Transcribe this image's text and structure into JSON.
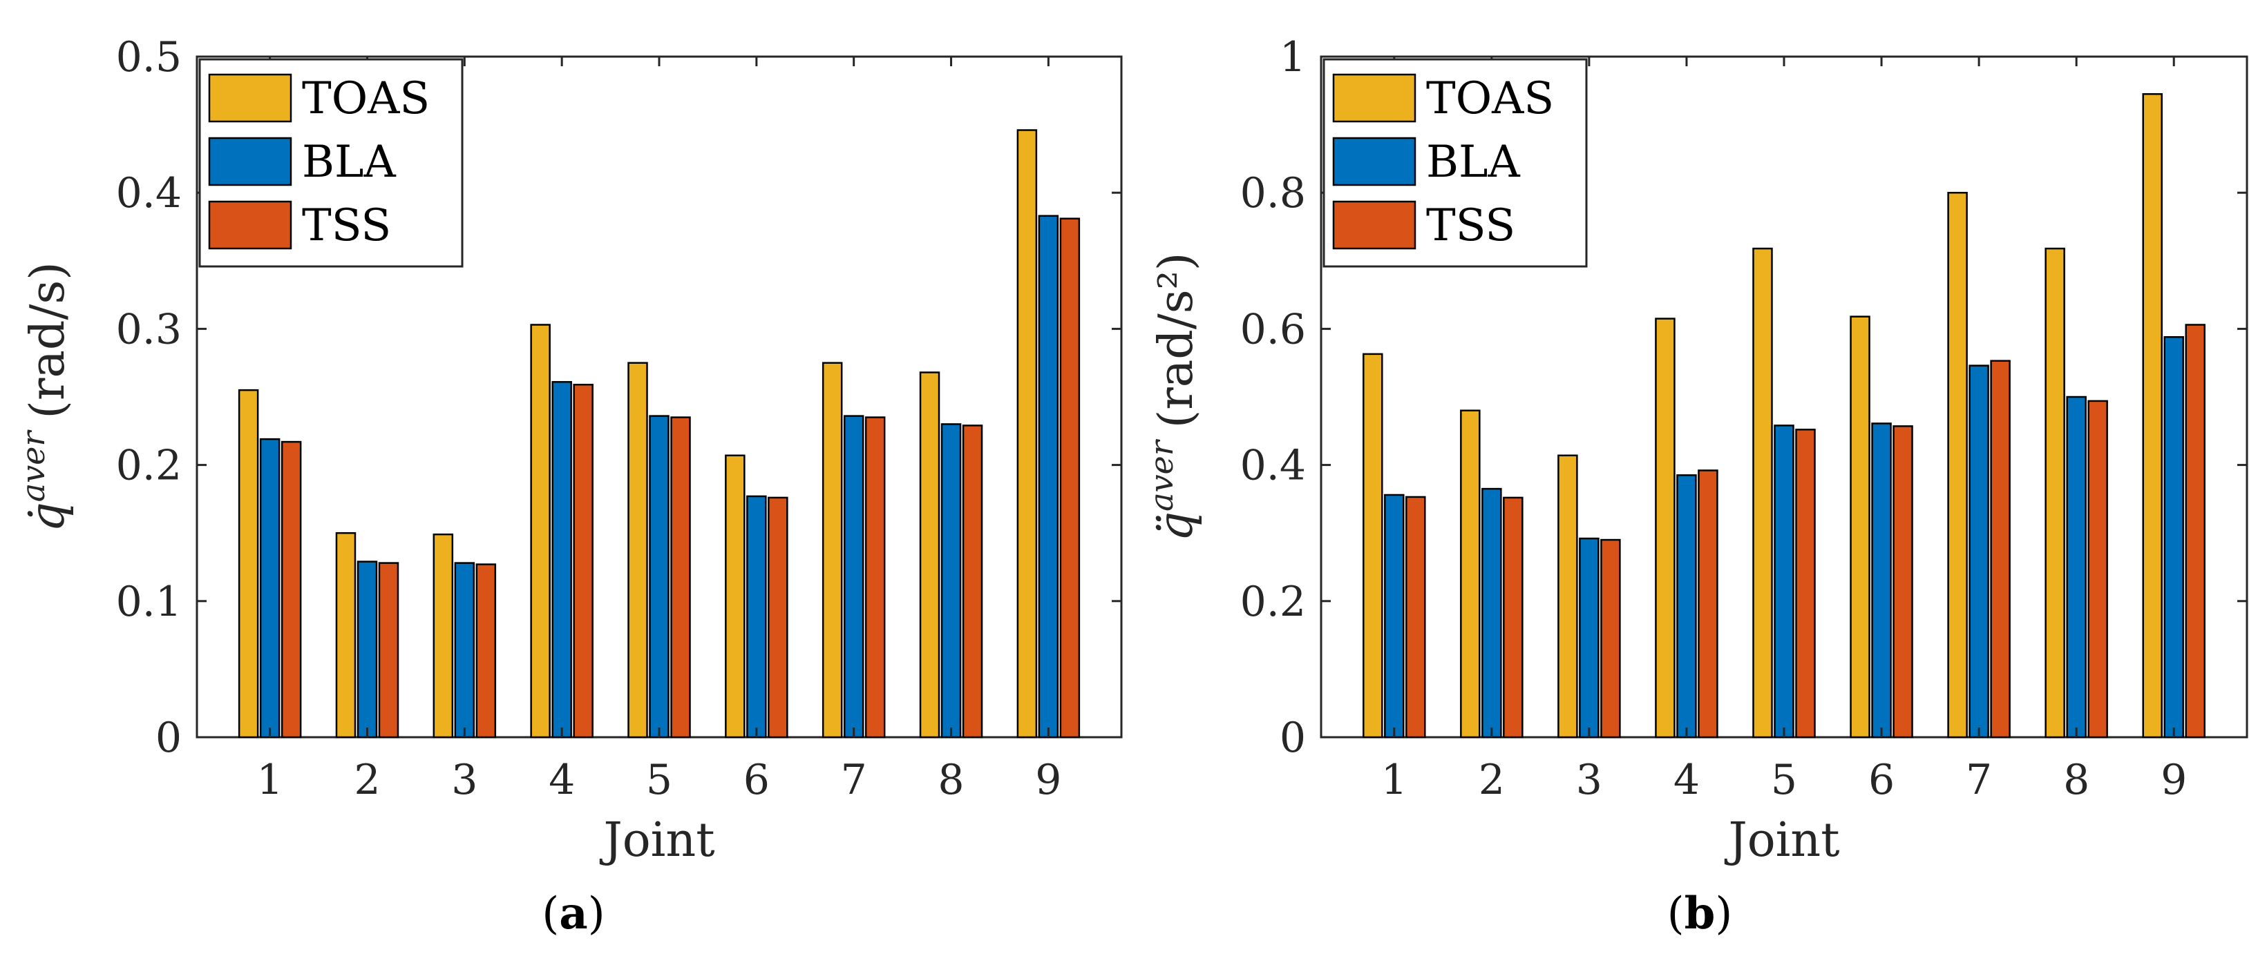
{
  "chart_data": [
    {
      "type": "bar",
      "panel": "a",
      "caption_letter": "a",
      "xlabel": "Joint",
      "ylabel_symbol": "q̇",
      "ylabel_superscript": "aver",
      "ylabel_unit": "(rad/s)",
      "categories": [
        "1",
        "2",
        "3",
        "4",
        "5",
        "6",
        "7",
        "8",
        "9"
      ],
      "ylim": [
        0,
        0.5
      ],
      "yticks": [
        "0",
        "0.1",
        "0.2",
        "0.3",
        "0.4",
        "0.5"
      ],
      "legend_position": "top-left",
      "series": [
        {
          "name": "TOAS",
          "color": "#EDB120",
          "values": [
            0.255,
            0.15,
            0.149,
            0.303,
            0.275,
            0.207,
            0.275,
            0.268,
            0.446
          ]
        },
        {
          "name": "BLA",
          "color": "#0072BD",
          "values": [
            0.219,
            0.129,
            0.128,
            0.261,
            0.236,
            0.177,
            0.236,
            0.23,
            0.383
          ]
        },
        {
          "name": "TSS",
          "color": "#D95319",
          "values": [
            0.217,
            0.128,
            0.127,
            0.259,
            0.235,
            0.176,
            0.235,
            0.229,
            0.381
          ]
        }
      ]
    },
    {
      "type": "bar",
      "panel": "b",
      "caption_letter": "b",
      "xlabel": "Joint",
      "ylabel_symbol": "q̈",
      "ylabel_superscript": "aver",
      "ylabel_unit": "(rad/s²)",
      "categories": [
        "1",
        "2",
        "3",
        "4",
        "5",
        "6",
        "7",
        "8",
        "9"
      ],
      "ylim": [
        0,
        1
      ],
      "yticks": [
        "0",
        "0.2",
        "0.4",
        "0.6",
        "0.8",
        "1"
      ],
      "legend_position": "top-left",
      "series": [
        {
          "name": "TOAS",
          "color": "#EDB120",
          "values": [
            0.563,
            0.48,
            0.414,
            0.615,
            0.718,
            0.618,
            0.8,
            0.718,
            0.945
          ]
        },
        {
          "name": "BLA",
          "color": "#0072BD",
          "values": [
            0.356,
            0.365,
            0.292,
            0.385,
            0.458,
            0.461,
            0.546,
            0.5,
            0.588
          ]
        },
        {
          "name": "TSS",
          "color": "#D95319",
          "values": [
            0.353,
            0.352,
            0.29,
            0.392,
            0.452,
            0.457,
            0.553,
            0.494,
            0.606
          ]
        }
      ]
    }
  ]
}
